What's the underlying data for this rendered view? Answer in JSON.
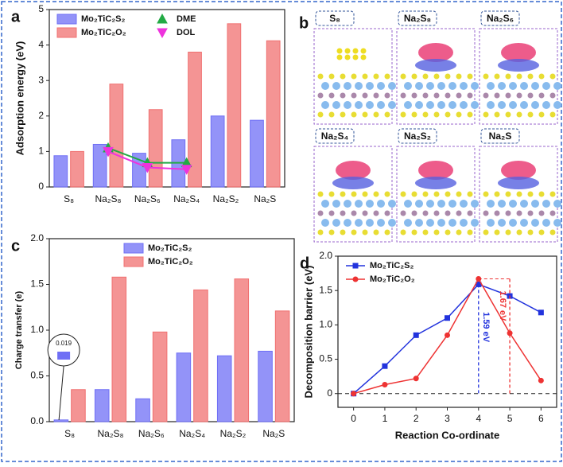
{
  "chart_data": [
    {
      "type": "bar",
      "panel": "a",
      "y_label": "Adsorption energy (eV)",
      "categories": [
        "S₈",
        "Na₂S₈",
        "Na₂S₆",
        "Na₂S₄",
        "Na₂S₂",
        "Na₂S"
      ],
      "series": [
        {
          "name": "Mo₂TiC₂S₂",
          "color": "#6f6ff5",
          "values": [
            0.88,
            1.2,
            0.95,
            1.33,
            2.0,
            1.88
          ]
        },
        {
          "name": "Mo₂TiC₂O₂",
          "color": "#f07070",
          "values": [
            1.0,
            2.9,
            2.18,
            3.8,
            4.6,
            4.12
          ]
        },
        {
          "name": "DME",
          "type": "line",
          "marker": "triangle-up",
          "color": "#22aa44",
          "values": [
            null,
            1.1,
            0.68,
            0.68,
            null,
            null
          ]
        },
        {
          "name": "DOL",
          "type": "line",
          "marker": "triangle-down",
          "color": "#ee33dd",
          "values": [
            null,
            1.0,
            0.55,
            0.5,
            null,
            null
          ]
        }
      ],
      "ylim": [
        0,
        5
      ],
      "yticks": [
        0,
        1,
        2,
        3,
        4,
        5
      ],
      "legend": "upper left",
      "legend_columns": 2
    },
    {
      "type": "bar",
      "panel": "c",
      "y_label": "Charge transfer (e)",
      "categories": [
        "S₈",
        "Na₂S₈",
        "Na₂S₆",
        "Na₂S₄",
        "Na₂S₂",
        "Na₂S"
      ],
      "series": [
        {
          "name": "Mo₂TiC₂S₂",
          "color": "#6f6ff5",
          "values": [
            0.019,
            0.35,
            0.25,
            0.75,
            0.72,
            0.77
          ]
        },
        {
          "name": "Mo₂TiC₂O₂",
          "color": "#f07070",
          "values": [
            0.35,
            1.58,
            0.98,
            1.44,
            1.56,
            1.21
          ]
        }
      ],
      "ylim": [
        0,
        2.0
      ],
      "yticks": [
        {
          "value": 0,
          "label": "0.0"
        },
        {
          "value": 0.5,
          "label": "0.5"
        },
        {
          "value": 1,
          "label": "1.0"
        },
        {
          "value": 1.5,
          "label": "1.5"
        },
        {
          "value": 2,
          "label": "2.0"
        }
      ],
      "legend": "upper center",
      "legend_columns": 1
    },
    {
      "type": "line",
      "panel": "d",
      "x_label": "Reaction Co-ordinate",
      "y_label": "Decomposition barrier (eV)",
      "x": [
        0,
        1,
        2,
        3,
        4,
        5,
        6
      ],
      "series": [
        {
          "name": "Mo₂TiC₂S₂",
          "marker": "square",
          "color": "#2233dd",
          "values": [
            0,
            0.4,
            0.85,
            1.1,
            1.59,
            1.42,
            1.18
          ]
        },
        {
          "name": "Mo₂TiC₂O₂",
          "marker": "circle",
          "color": "#ee3333",
          "values": [
            0,
            0.13,
            0.22,
            0.85,
            1.67,
            0.88,
            0.19
          ]
        }
      ],
      "annotations": [
        "1.59 eV",
        "1.67 eV"
      ],
      "xlim": [
        -0.5,
        6.5
      ],
      "xticks": [
        0,
        1,
        2,
        3,
        4,
        5,
        6
      ],
      "ylim": [
        -0.2,
        2.0
      ],
      "yticks": [
        0,
        {
          "value": 0.5,
          "label": "0.5"
        },
        {
          "value": 1,
          "label": "1.0"
        },
        {
          "value": 1.5,
          "label": "1.5"
        },
        {
          "value": 2,
          "label": "2.0"
        }
      ],
      "legend": "upper left",
      "legend_columns": 1
    }
  ],
  "structures": {
    "panel": "b",
    "labels": [
      "S₈",
      "Na₂S₈",
      "Na₂S₆",
      "Na₂S₄",
      "Na₂S₂",
      "Na₂S"
    ]
  }
}
